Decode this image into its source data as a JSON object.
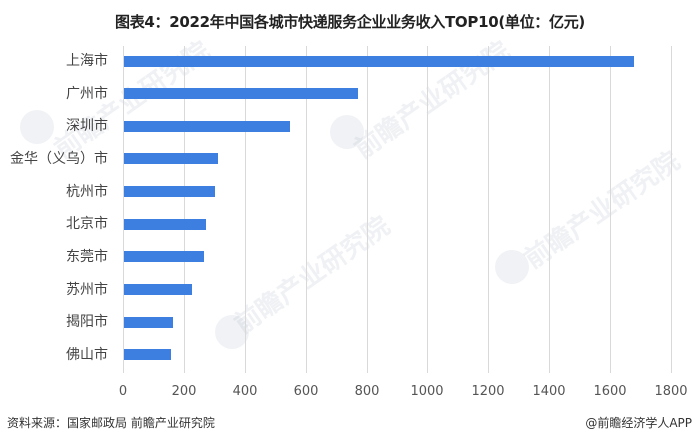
{
  "title": "图表4：2022年中国各城市快递服务企业业务收入TOP10(单位：亿元)",
  "footer": {
    "source": "资料来源：国家邮政局 前瞻产业研究院",
    "credit": "@前瞻经济学人APP"
  },
  "watermark": "前瞻产业研究院",
  "colors": {
    "bar": "#3c7fe0",
    "grid": "#d9d9d9"
  },
  "chart_data": {
    "type": "bar",
    "orientation": "horizontal",
    "title": "图表4：2022年中国各城市快递服务企业业务收入TOP10(单位：亿元)",
    "xlabel": "",
    "ylabel": "",
    "unit": "亿元",
    "categories": [
      "上海市",
      "广州市",
      "深圳市",
      "金华（义乌）市",
      "杭州市",
      "北京市",
      "东莞市",
      "苏州市",
      "揭阳市",
      "佛山市"
    ],
    "values": [
      1675,
      770,
      545,
      308,
      298,
      269,
      262,
      223,
      161,
      155
    ],
    "xlim": [
      0,
      1800
    ],
    "xticks": [
      "0",
      "200",
      "400",
      "600",
      "800",
      "1000",
      "1200",
      "1400",
      "1600",
      "1800"
    ],
    "grid": "vertical",
    "legend": "none"
  }
}
